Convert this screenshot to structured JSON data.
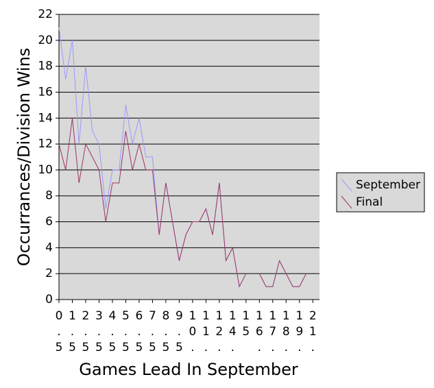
{
  "chart_data": {
    "type": "line",
    "x_label": "Games Lead In September",
    "y_label": "Occurrances/Division Wins",
    "categories": [
      "0.5",
      null,
      "1.5",
      null,
      "2.5",
      null,
      "3.5",
      null,
      "4.5",
      null,
      "5.5",
      null,
      "6.5",
      null,
      "7.5",
      null,
      "8.5",
      null,
      "9.5",
      null,
      "10.",
      null,
      "11.",
      null,
      "12.",
      null,
      "14.",
      null,
      "15",
      null,
      "16.",
      null,
      "17.",
      null,
      "18.",
      null,
      "19.",
      null,
      "21.",
      null
    ],
    "series": [
      {
        "name": "September",
        "color": "#9999ff",
        "values": [
          21,
          17,
          20,
          12,
          18,
          13,
          12,
          7,
          10,
          10,
          15,
          12,
          14,
          11,
          11,
          5,
          9,
          6,
          3,
          5,
          6,
          6,
          7,
          5,
          9,
          3,
          4,
          1,
          2,
          null,
          2,
          1,
          1,
          3,
          2,
          1,
          1,
          2,
          null,
          2
        ]
      },
      {
        "name": "Final",
        "color": "#993366",
        "values": [
          12,
          10,
          14,
          9,
          12,
          11,
          10,
          6,
          9,
          9,
          13,
          10,
          12,
          10,
          10,
          5,
          9,
          6,
          3,
          5,
          6,
          6,
          7,
          5,
          9,
          3,
          4,
          1,
          2,
          null,
          2,
          1,
          1,
          3,
          2,
          1,
          1,
          2,
          null,
          2
        ]
      }
    ],
    "ylim": [
      0,
      22
    ],
    "yticks": [
      0,
      2,
      4,
      6,
      8,
      10,
      12,
      14,
      16,
      18,
      20,
      22
    ],
    "grid": true,
    "legend": "right"
  }
}
